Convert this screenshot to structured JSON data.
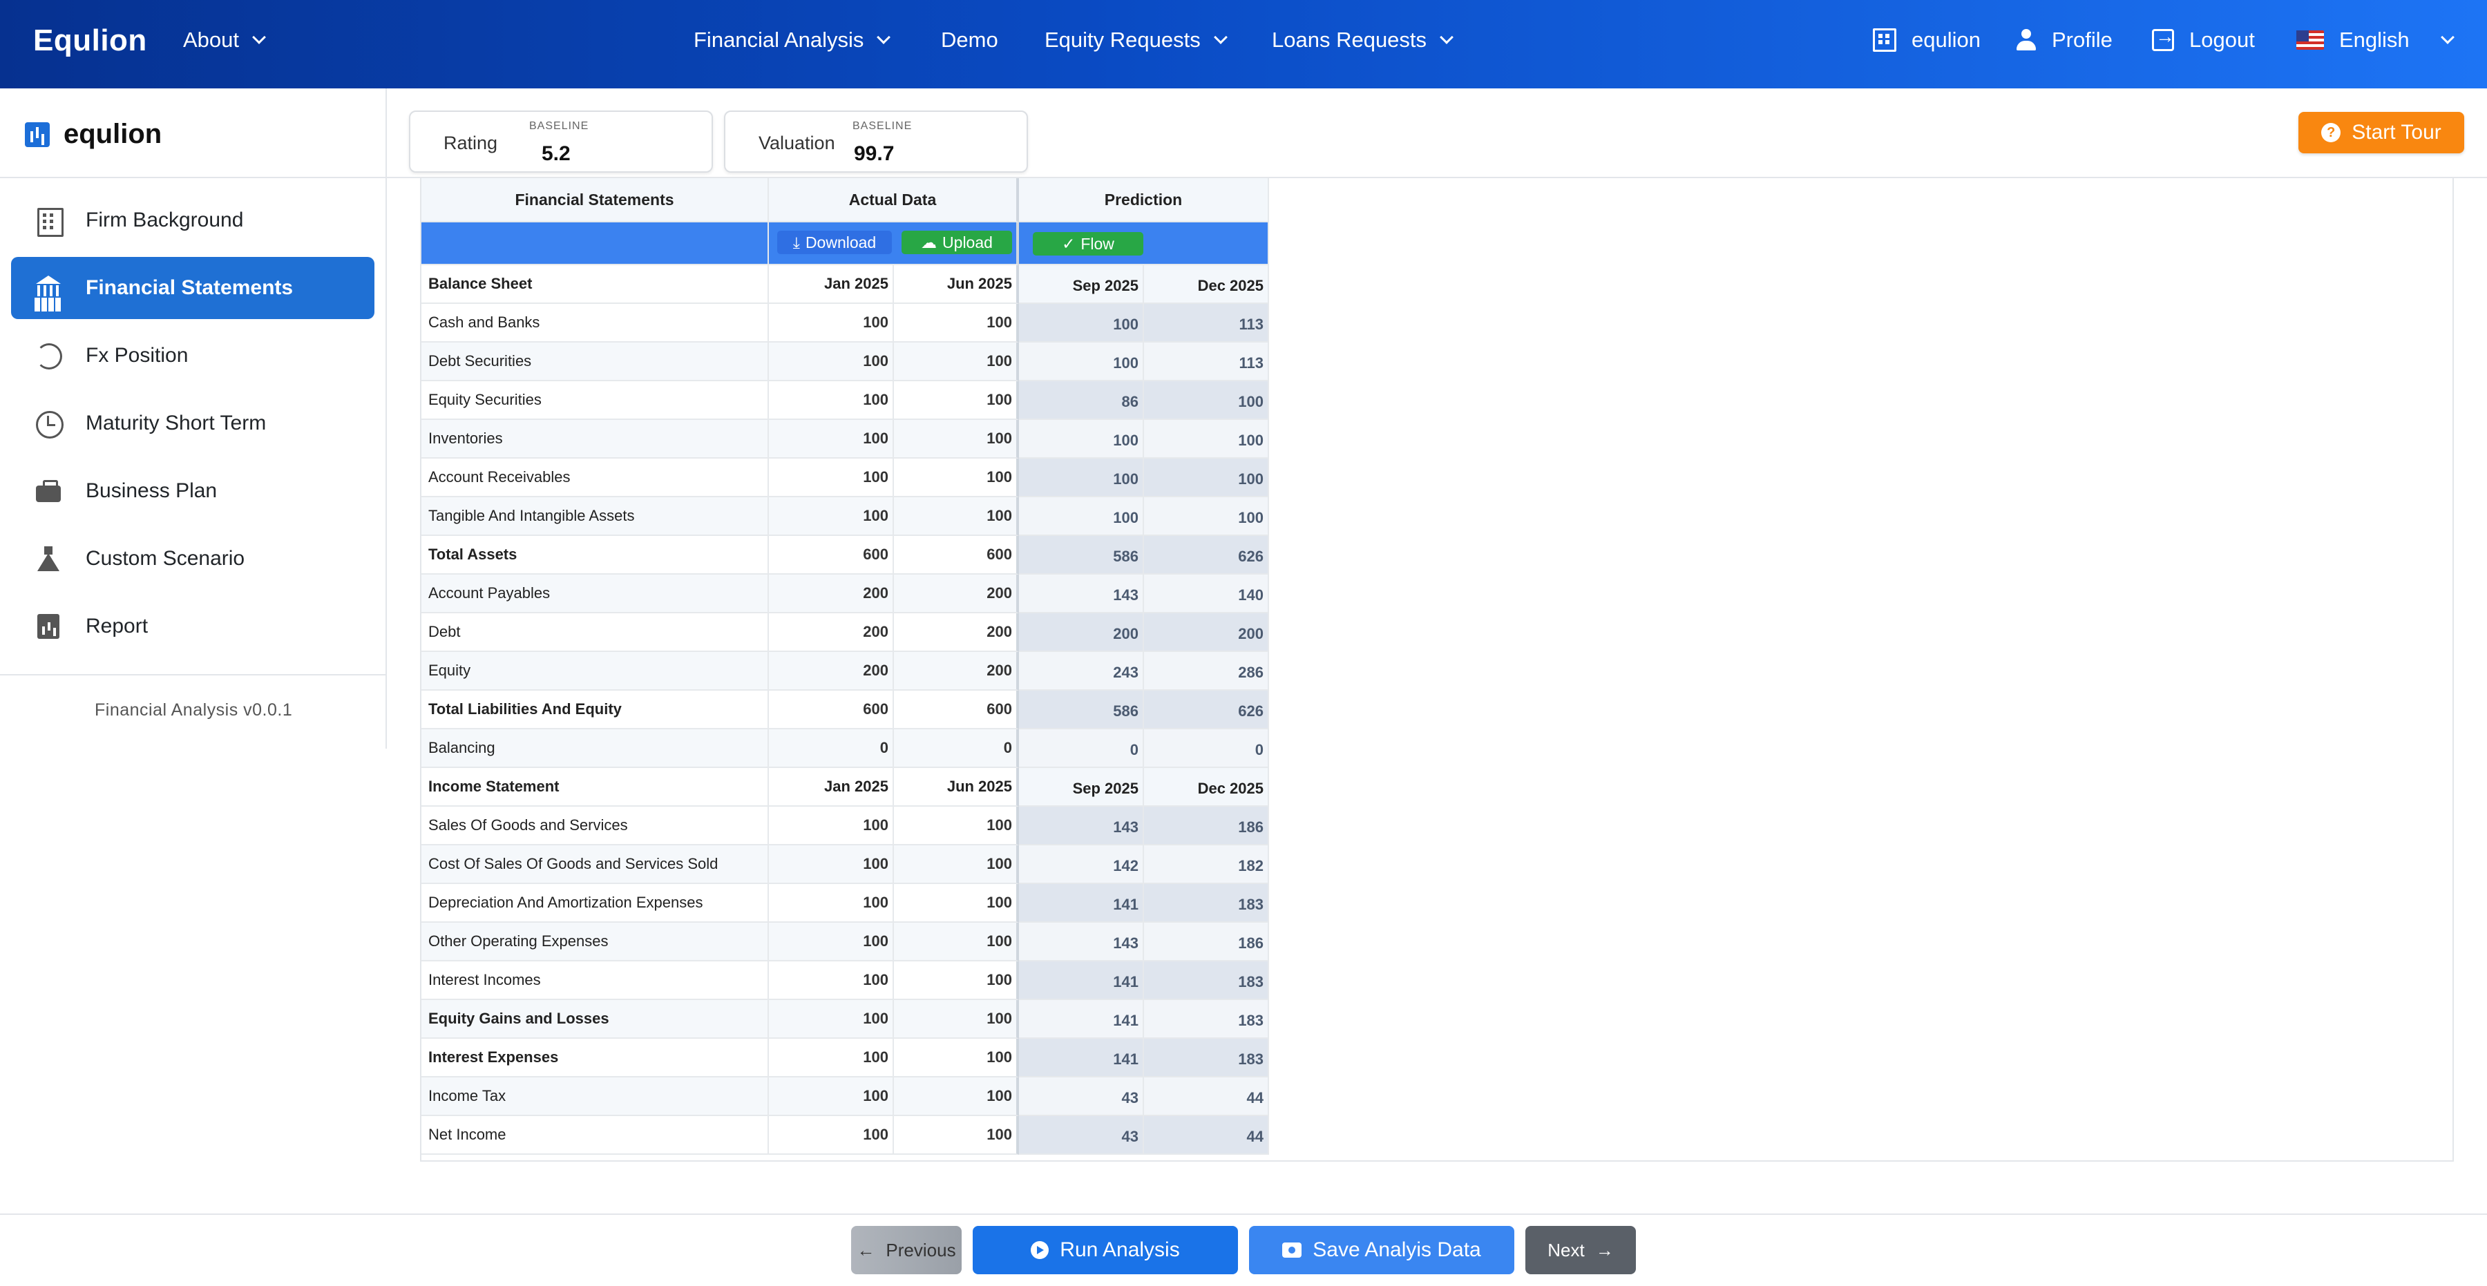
{
  "topnav": {
    "brand": "Equlion",
    "about": "About",
    "financial_analysis": "Financial Analysis",
    "demo": "Demo",
    "equity_requests": "Equity Requests",
    "loans_requests": "Loans Requests",
    "org": "equlion",
    "profile": "Profile",
    "logout": "Logout",
    "language": "English"
  },
  "sidebar": {
    "brand": "equlion",
    "items": [
      {
        "label": "Firm Background",
        "icon": "building-icon"
      },
      {
        "label": "Financial Statements",
        "icon": "bank-icon"
      },
      {
        "label": "Fx Position",
        "icon": "currency-exchange-icon"
      },
      {
        "label": "Maturity Short Term",
        "icon": "clock-icon"
      },
      {
        "label": "Business Plan",
        "icon": "briefcase-icon"
      },
      {
        "label": "Custom Scenario",
        "icon": "flask-icon"
      },
      {
        "label": "Report",
        "icon": "report-chart-icon"
      }
    ],
    "active_index": 1,
    "version": "Financial Analysis v0.0.1"
  },
  "cards": {
    "rating": {
      "label": "Rating",
      "sub": "BASELINE",
      "value": "5.2"
    },
    "valuation": {
      "label": "Valuation",
      "sub": "BASELINE",
      "value": "99.7"
    }
  },
  "tour": {
    "label": "Start Tour"
  },
  "table": {
    "headers": {
      "statements": "Financial Statements",
      "actual": "Actual Data",
      "prediction": "Prediction"
    },
    "buttons": {
      "download": "Download",
      "upload": "Upload",
      "flow": "Flow"
    },
    "sections": [
      {
        "title": "Balance Sheet",
        "periods": [
          "Jan 2025",
          "Jun 2025",
          "Sep 2025",
          "Dec 2025"
        ],
        "rows": [
          {
            "label": "Cash and Banks",
            "bold": false,
            "v": [
              "100",
              "100",
              "100",
              "113"
            ]
          },
          {
            "label": "Debt Securities",
            "bold": false,
            "v": [
              "100",
              "100",
              "100",
              "113"
            ]
          },
          {
            "label": "Equity Securities",
            "bold": false,
            "v": [
              "100",
              "100",
              "86",
              "100"
            ]
          },
          {
            "label": "Inventories",
            "bold": false,
            "v": [
              "100",
              "100",
              "100",
              "100"
            ]
          },
          {
            "label": "Account Receivables",
            "bold": false,
            "v": [
              "100",
              "100",
              "100",
              "100"
            ]
          },
          {
            "label": "Tangible And Intangible Assets",
            "bold": false,
            "v": [
              "100",
              "100",
              "100",
              "100"
            ]
          },
          {
            "label": "Total Assets",
            "bold": true,
            "v": [
              "600",
              "600",
              "586",
              "626"
            ]
          },
          {
            "label": "Account Payables",
            "bold": false,
            "v": [
              "200",
              "200",
              "143",
              "140"
            ]
          },
          {
            "label": "Debt",
            "bold": false,
            "v": [
              "200",
              "200",
              "200",
              "200"
            ]
          },
          {
            "label": "Equity",
            "bold": false,
            "v": [
              "200",
              "200",
              "243",
              "286"
            ]
          },
          {
            "label": "Total Liabilities And Equity",
            "bold": true,
            "v": [
              "600",
              "600",
              "586",
              "626"
            ]
          },
          {
            "label": "Balancing",
            "bold": false,
            "v": [
              "0",
              "0",
              "0",
              "0"
            ]
          }
        ]
      },
      {
        "title": "Income Statement",
        "periods": [
          "Jan 2025",
          "Jun 2025",
          "Sep 2025",
          "Dec 2025"
        ],
        "rows": [
          {
            "label": "Sales Of Goods and Services",
            "bold": false,
            "v": [
              "100",
              "100",
              "143",
              "186"
            ]
          },
          {
            "label": "Cost Of Sales Of Goods and Services Sold",
            "bold": false,
            "v": [
              "100",
              "100",
              "142",
              "182"
            ]
          },
          {
            "label": "Depreciation And Amortization Expenses",
            "bold": false,
            "v": [
              "100",
              "100",
              "141",
              "183"
            ]
          },
          {
            "label": "Other Operating Expenses",
            "bold": false,
            "v": [
              "100",
              "100",
              "143",
              "186"
            ]
          },
          {
            "label": "Interest Incomes",
            "bold": false,
            "v": [
              "100",
              "100",
              "141",
              "183"
            ]
          },
          {
            "label": "Equity Gains and Losses",
            "bold": true,
            "v": [
              "100",
              "100",
              "141",
              "183"
            ]
          },
          {
            "label": "Interest Expenses",
            "bold": true,
            "v": [
              "100",
              "100",
              "141",
              "183"
            ]
          },
          {
            "label": "Income Tax",
            "bold": false,
            "v": [
              "100",
              "100",
              "43",
              "44"
            ]
          },
          {
            "label": "Net Income",
            "bold": false,
            "v": [
              "100",
              "100",
              "43",
              "44"
            ]
          }
        ]
      }
    ]
  },
  "footer": {
    "previous": "Previous",
    "run": "Run Analysis",
    "save": "Save Analyis Data",
    "next": "Next"
  }
}
